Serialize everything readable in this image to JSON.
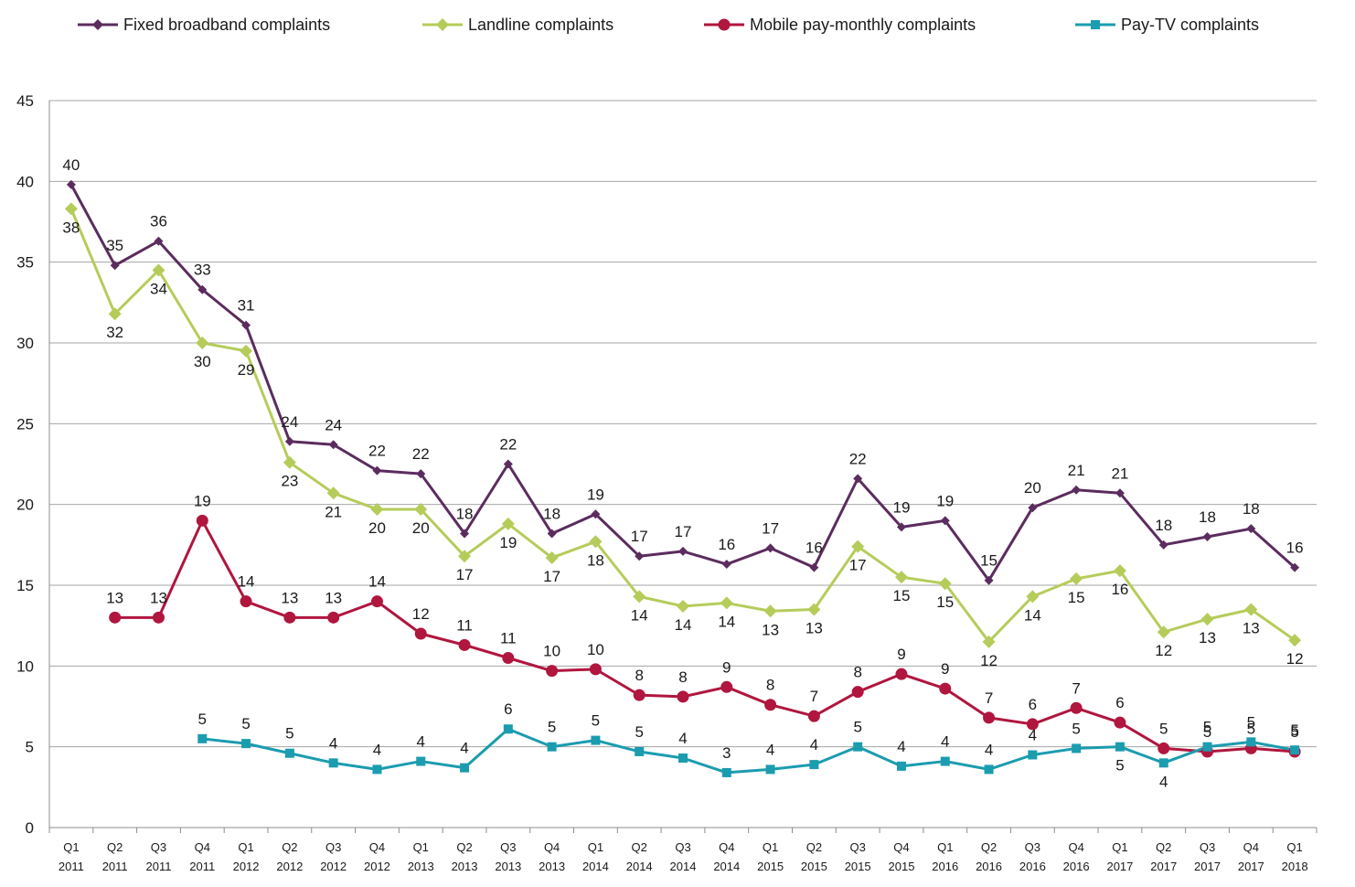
{
  "chart_data": {
    "type": "line",
    "categories": [
      "Q1 2011",
      "Q2 2011",
      "Q3 2011",
      "Q4 2011",
      "Q1 2012",
      "Q2 2012",
      "Q3 2012",
      "Q4 2012",
      "Q1 2013",
      "Q2 2013",
      "Q3 2013",
      "Q4 2013",
      "Q1 2014",
      "Q2 2014",
      "Q3 2014",
      "Q4 2014",
      "Q1 2015",
      "Q2 2015",
      "Q3 2015",
      "Q4 2015",
      "Q1 2016",
      "Q2 2016",
      "Q3 2016",
      "Q4 2016",
      "Q1 2017",
      "Q2 2017",
      "Q3 2017",
      "Q4 2017",
      "Q1 2018"
    ],
    "category_quarters": [
      "Q1",
      "Q2",
      "Q3",
      "Q4",
      "Q1",
      "Q2",
      "Q3",
      "Q4",
      "Q1",
      "Q2",
      "Q3",
      "Q4",
      "Q1",
      "Q2",
      "Q3",
      "Q4",
      "Q1",
      "Q2",
      "Q3",
      "Q4",
      "Q1",
      "Q2",
      "Q3",
      "Q4",
      "Q1",
      "Q2",
      "Q3",
      "Q4",
      "Q1"
    ],
    "category_years": [
      "2011",
      "2011",
      "2011",
      "2011",
      "2012",
      "2012",
      "2012",
      "2012",
      "2013",
      "2013",
      "2013",
      "2013",
      "2014",
      "2014",
      "2014",
      "2014",
      "2015",
      "2015",
      "2015",
      "2015",
      "2016",
      "2016",
      "2016",
      "2016",
      "2017",
      "2017",
      "2017",
      "2017",
      "2018"
    ],
    "ylim": [
      0,
      45
    ],
    "yticks": [
      0,
      5,
      10,
      15,
      20,
      25,
      30,
      35,
      40,
      45
    ],
    "grid": true,
    "legend_position": "top",
    "series": [
      {
        "name": "Fixed broadband complaints",
        "color": "#5b2c5e",
        "marker": "diamond",
        "values": [
          39.8,
          34.8,
          36.3,
          33.3,
          31.1,
          23.9,
          23.7,
          22.1,
          21.9,
          18.2,
          22.5,
          18.2,
          19.4,
          16.8,
          17.1,
          16.3,
          17.3,
          16.1,
          21.6,
          18.6,
          19.0,
          15.3,
          19.8,
          20.9,
          20.7,
          17.5,
          18.0,
          18.5,
          16.1
        ],
        "labels": [
          "40",
          "35",
          "36",
          "33",
          "31",
          "24",
          "24",
          "22",
          "22",
          "18",
          "22",
          "18",
          "19",
          "17",
          "17",
          "16",
          "17",
          "16",
          "22",
          "19",
          "19",
          "15",
          "20",
          "21",
          "21",
          "18",
          "18",
          "18",
          "16"
        ],
        "label_pos": [
          "above",
          "above",
          "above",
          "above",
          "above",
          "above",
          "above",
          "above",
          "above",
          "above",
          "above",
          "above",
          "above",
          "above",
          "above",
          "above",
          "above",
          "above",
          "above",
          "above",
          "above",
          "above",
          "above",
          "above",
          "above",
          "above",
          "above",
          "above",
          "above"
        ]
      },
      {
        "name": "Landline complaints",
        "color": "#b5cc5a",
        "marker": "diamond",
        "values": [
          38.3,
          31.8,
          34.5,
          30.0,
          29.5,
          22.6,
          20.7,
          19.7,
          19.7,
          16.8,
          18.8,
          16.7,
          17.7,
          14.3,
          13.7,
          13.9,
          13.4,
          13.5,
          17.4,
          15.5,
          15.1,
          11.5,
          14.3,
          15.4,
          15.9,
          12.1,
          12.9,
          13.5,
          11.6
        ],
        "labels": [
          "38",
          "32",
          "34",
          "30",
          "29",
          "23",
          "21",
          "20",
          "20",
          "17",
          "19",
          "17",
          "18",
          "14",
          "14",
          "14",
          "13",
          "13",
          "17",
          "15",
          "15",
          "12",
          "14",
          "15",
          "16",
          "12",
          "13",
          "13",
          "12"
        ],
        "label_pos": [
          "below",
          "below",
          "below",
          "below",
          "below",
          "below",
          "below",
          "below",
          "below",
          "below",
          "below",
          "below",
          "below",
          "below",
          "below",
          "below",
          "below",
          "below",
          "below",
          "below",
          "below",
          "below",
          "below",
          "below",
          "below",
          "below",
          "below",
          "below",
          "below"
        ]
      },
      {
        "name": "Mobile pay-monthly complaints",
        "color": "#b0163e",
        "marker": "circle",
        "values": [
          null,
          13.0,
          13.0,
          19.0,
          14.0,
          13.0,
          13.0,
          14.0,
          12.0,
          11.3,
          10.5,
          9.7,
          9.8,
          8.2,
          8.1,
          8.7,
          7.6,
          6.9,
          8.4,
          9.5,
          8.6,
          6.8,
          6.4,
          7.4,
          6.5,
          4.9,
          4.7,
          4.9,
          4.7
        ],
        "labels": [
          null,
          "13",
          "13",
          "19",
          "14",
          "13",
          "13",
          "14",
          "12",
          "11",
          "11",
          "10",
          "10",
          "8",
          "8",
          "9",
          "8",
          "7",
          "8",
          "9",
          "9",
          "7",
          "6",
          "7",
          "6",
          "5",
          "5",
          "5",
          "5"
        ],
        "label_pos": [
          null,
          "above",
          "above",
          "above",
          "above",
          "above",
          "above",
          "above",
          "above",
          "above",
          "above",
          "above",
          "above",
          "above",
          "above",
          "above",
          "above",
          "above",
          "above",
          "above",
          "above",
          "above",
          "above",
          "above",
          "above",
          "above",
          "above",
          "above",
          "above"
        ]
      },
      {
        "name": "Pay-TV complaints",
        "color": "#1b9caf",
        "marker": "square",
        "values": [
          null,
          null,
          null,
          5.5,
          5.2,
          4.6,
          4.0,
          3.6,
          4.1,
          3.7,
          6.1,
          5.0,
          5.4,
          4.7,
          4.3,
          3.4,
          3.6,
          3.9,
          5.0,
          3.8,
          4.1,
          3.6,
          4.5,
          4.9,
          5.0,
          4.0,
          5.0,
          5.3,
          4.8
        ],
        "labels": [
          null,
          null,
          null,
          "5",
          "5",
          "5",
          "4",
          "4",
          "4",
          "4",
          "6",
          "5",
          "5",
          "5",
          "4",
          "3",
          "4",
          "4",
          "5",
          "4",
          "4",
          "4",
          "4",
          "5",
          "5",
          "4",
          "5",
          "5",
          "5"
        ],
        "label_pos": [
          null,
          null,
          null,
          "above",
          "above",
          "above",
          "above",
          "above",
          "above",
          "above",
          "above",
          "above",
          "above",
          "above",
          "above",
          "above",
          "above",
          "above",
          "above",
          "above",
          "above",
          "above",
          "above",
          "above",
          "below",
          "below",
          "above",
          "above",
          "above"
        ]
      }
    ]
  }
}
